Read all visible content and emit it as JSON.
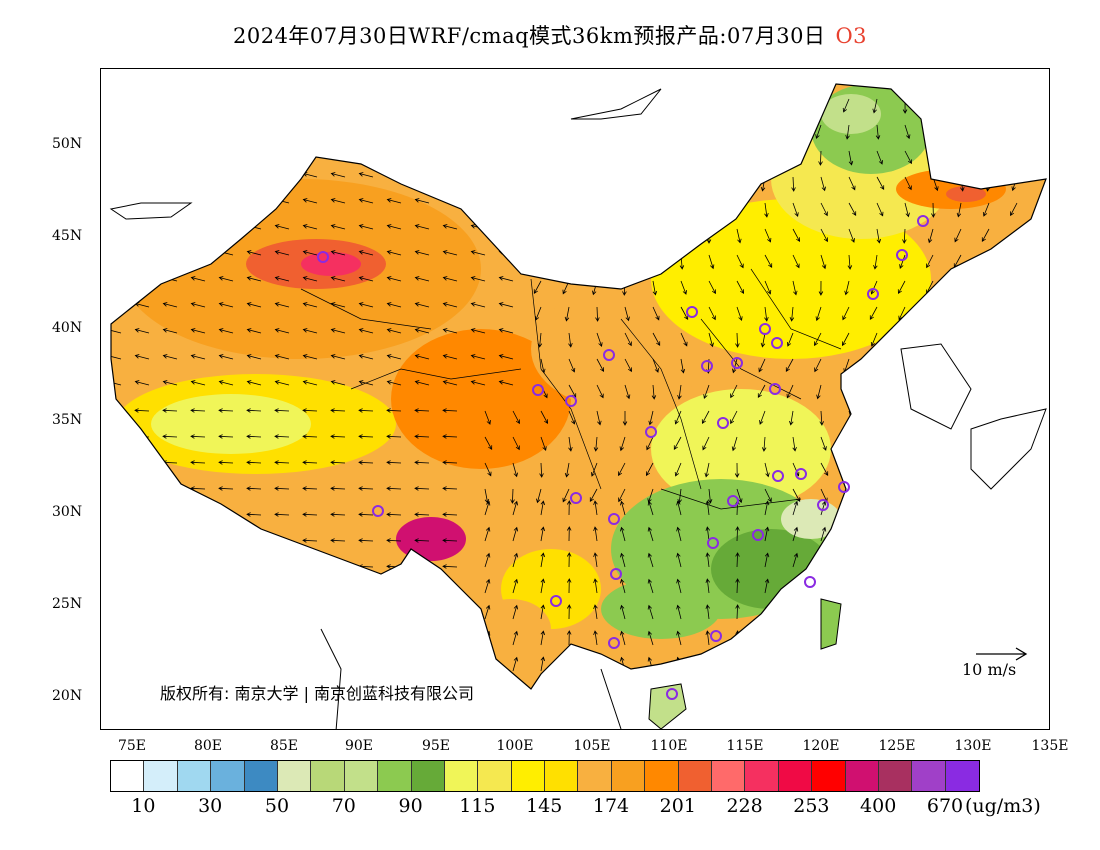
{
  "title": {
    "text": "2024年07月30日WRF/cmaq模式36km预报产品:07月30日",
    "species": "O3"
  },
  "map": {
    "lat_labels": [
      "50N",
      "45N",
      "40N",
      "35N",
      "30N",
      "25N",
      "20N"
    ],
    "lon_labels": [
      "75E",
      "80E",
      "85E",
      "90E",
      "95E",
      "100E",
      "105E",
      "110E",
      "115E",
      "120E",
      "125E",
      "130E",
      "135E"
    ],
    "copyright": "版权所有: 南京大学 | 南京创蓝科技有限公司",
    "wind_scale_label": "10 m/s"
  },
  "legend": {
    "unit": "(ug/m3)",
    "tick_labels": [
      "10",
      "30",
      "50",
      "70",
      "90",
      "115",
      "145",
      "174",
      "201",
      "228",
      "253",
      "400",
      "670"
    ],
    "colors": [
      "#ffffff",
      "#d4eefa",
      "#a0d8f0",
      "#6ab1dd",
      "#3d8ac2",
      "#dce9b6",
      "#b8d878",
      "#c2e08a",
      "#8cca50",
      "#66aa38",
      "#f0f558",
      "#f5e850",
      "#ffee00",
      "#ffe000",
      "#f8b040",
      "#f8a020",
      "#ff8800",
      "#f06030",
      "#ff6a6a",
      "#f53060",
      "#f00a45",
      "#ff0000",
      "#d01070",
      "#a83060",
      "#a040c8",
      "#8a2be2"
    ]
  }
}
